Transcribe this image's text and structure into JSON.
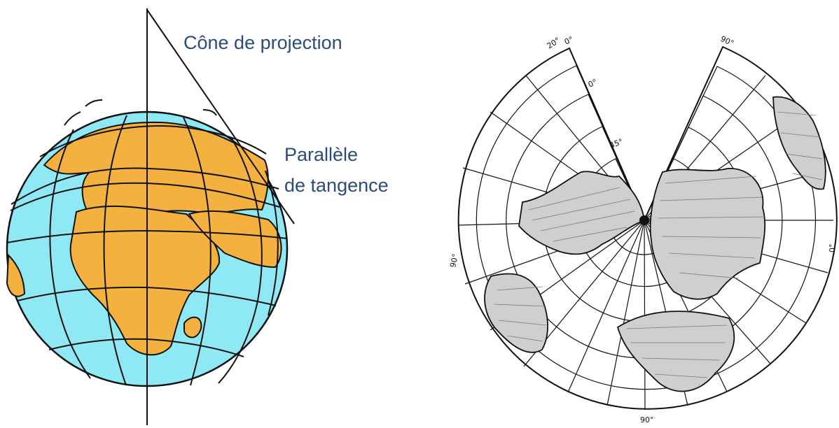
{
  "globe": {
    "cone_label": "Cône de projection",
    "parallel_label_line1": "Parallèle",
    "parallel_label_line2": "de tangence",
    "colors": {
      "ocean": "#8ee9f4",
      "land": "#f4b13f",
      "outline": "#111111",
      "label": "#2b4c7e"
    }
  },
  "projection_map": {
    "labels": {
      "top_left": "20°",
      "top_right": "0°",
      "top_right_far": "90°",
      "left": "90°",
      "inner_0": "0°",
      "inner_45": "45°",
      "bottom": "90°",
      "right": "0°"
    },
    "colors": {
      "background": "#ffffff",
      "grid": "#111111",
      "land_fill": "#cfcfcf",
      "land_outline": "#111111"
    }
  }
}
